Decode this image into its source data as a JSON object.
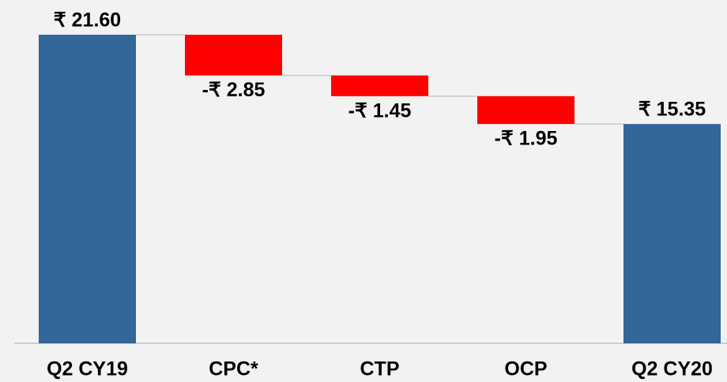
{
  "chart_data": {
    "type": "waterfall",
    "categories": [
      "Q2 CY19",
      "CPC*",
      "CTP",
      "OCP",
      "Q2 CY20"
    ],
    "values": [
      21.6,
      -2.85,
      -1.45,
      -1.95,
      15.35
    ],
    "value_labels": [
      "₹ 21.60",
      "-₹ 2.85",
      "-₹ 1.45",
      "-₹ 1.95",
      "₹ 15.35"
    ],
    "colors": [
      "#336699",
      "#ff0000",
      "#ff0000",
      "#ff0000",
      "#336699"
    ],
    "ylim": [
      0,
      21.6
    ]
  }
}
